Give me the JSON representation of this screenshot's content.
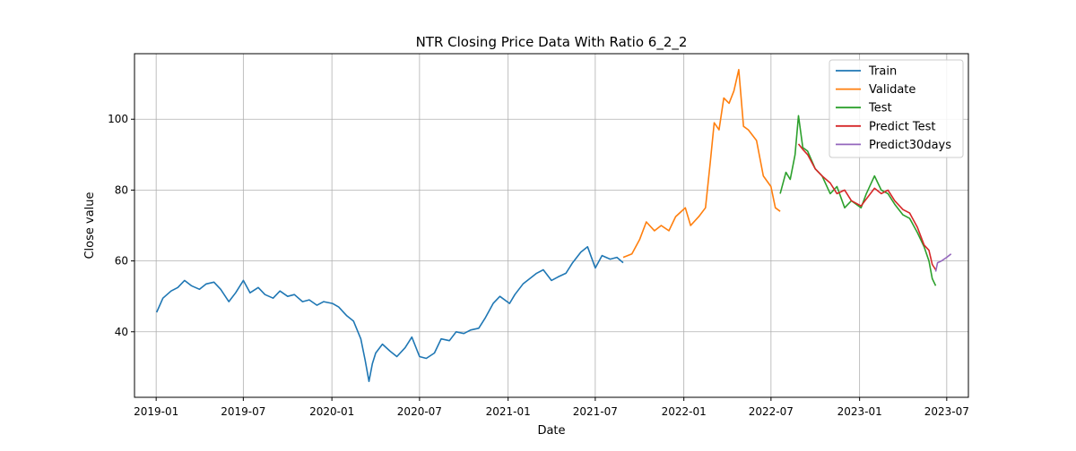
{
  "chart_data": {
    "type": "line",
    "title": "NTR Closing Price Data With Ratio 6_2_2",
    "xlabel": "Date",
    "ylabel": "Close value",
    "xlim": [
      "2018-11-17",
      "2023-08-15"
    ],
    "ylim": [
      21.5,
      118.5
    ],
    "grid": true,
    "legend_position": "top-right",
    "x_ticks": [
      "2019-01",
      "2019-07",
      "2020-01",
      "2020-07",
      "2021-01",
      "2021-07",
      "2022-01",
      "2022-07",
      "2023-01",
      "2023-07"
    ],
    "y_ticks": [
      40,
      60,
      80,
      100
    ],
    "series": [
      {
        "name": "Train",
        "color": "#1f77b4",
        "x": [
          "2019-01-02",
          "2019-01-15",
          "2019-02-01",
          "2019-02-15",
          "2019-03-01",
          "2019-03-15",
          "2019-04-01",
          "2019-04-15",
          "2019-05-01",
          "2019-05-15",
          "2019-06-01",
          "2019-06-15",
          "2019-07-01",
          "2019-07-15",
          "2019-08-01",
          "2019-08-15",
          "2019-09-01",
          "2019-09-15",
          "2019-10-01",
          "2019-10-15",
          "2019-11-01",
          "2019-11-15",
          "2019-12-01",
          "2019-12-15",
          "2020-01-02",
          "2020-01-15",
          "2020-02-01",
          "2020-02-15",
          "2020-03-01",
          "2020-03-10",
          "2020-03-18",
          "2020-03-25",
          "2020-04-01",
          "2020-04-15",
          "2020-05-01",
          "2020-05-15",
          "2020-06-01",
          "2020-06-15",
          "2020-07-01",
          "2020-07-15",
          "2020-08-01",
          "2020-08-15",
          "2020-09-01",
          "2020-09-15",
          "2020-10-01",
          "2020-10-15",
          "2020-11-01",
          "2020-11-15",
          "2020-12-01",
          "2020-12-15",
          "2021-01-04",
          "2021-01-15",
          "2021-02-01",
          "2021-02-15",
          "2021-03-01",
          "2021-03-15",
          "2021-04-01",
          "2021-04-15",
          "2021-05-01",
          "2021-05-15",
          "2021-06-01",
          "2021-06-15",
          "2021-07-01",
          "2021-07-15",
          "2021-08-01",
          "2021-08-15",
          "2021-08-28"
        ],
        "y": [
          45.5,
          49.5,
          51.5,
          52.5,
          54.5,
          53.0,
          52.0,
          53.5,
          54.0,
          52.0,
          48.5,
          51.0,
          54.5,
          51.0,
          52.5,
          50.5,
          49.5,
          51.5,
          50.0,
          50.5,
          48.5,
          49.0,
          47.5,
          48.5,
          48.0,
          47.0,
          44.5,
          43.0,
          38.0,
          32.0,
          26.0,
          31.0,
          34.0,
          36.5,
          34.5,
          33.0,
          35.5,
          38.5,
          33.0,
          32.5,
          34.0,
          38.0,
          37.5,
          40.0,
          39.5,
          40.5,
          41.0,
          44.0,
          48.0,
          50.0,
          48.0,
          50.5,
          53.5,
          55.0,
          56.5,
          57.5,
          54.5,
          55.5,
          56.5,
          59.5,
          62.5,
          64.0,
          58.0,
          61.5,
          60.5,
          61.0,
          59.5
        ]
      },
      {
        "name": "Validate",
        "color": "#ff7f0e",
        "x": [
          "2021-08-28",
          "2021-09-15",
          "2021-10-01",
          "2021-10-15",
          "2021-11-01",
          "2021-11-15",
          "2021-12-01",
          "2021-12-15",
          "2022-01-04",
          "2022-01-15",
          "2022-02-01",
          "2022-02-15",
          "2022-02-25",
          "2022-03-05",
          "2022-03-15",
          "2022-03-25",
          "2022-04-05",
          "2022-04-15",
          "2022-04-25",
          "2022-05-05",
          "2022-05-15",
          "2022-06-01",
          "2022-06-15",
          "2022-07-01",
          "2022-07-10",
          "2022-07-20"
        ],
        "y": [
          61.0,
          62.0,
          66.0,
          71.0,
          68.5,
          70.0,
          68.5,
          72.5,
          75.0,
          70.0,
          72.5,
          75.0,
          88.0,
          99.0,
          97.0,
          106.0,
          104.5,
          108.0,
          114.0,
          98.0,
          97.0,
          94.0,
          84.0,
          81.0,
          75.0,
          74.0
        ]
      },
      {
        "name": "Test",
        "color": "#2ca02c",
        "x": [
          "2022-07-20",
          "2022-08-01",
          "2022-08-10",
          "2022-08-20",
          "2022-08-27",
          "2022-09-05",
          "2022-09-15",
          "2022-10-01",
          "2022-10-15",
          "2022-11-01",
          "2022-11-15",
          "2022-12-01",
          "2022-12-15",
          "2023-01-04",
          "2023-01-15",
          "2023-02-01",
          "2023-02-15",
          "2023-03-01",
          "2023-03-15",
          "2023-04-01",
          "2023-04-15",
          "2023-05-01",
          "2023-05-15",
          "2023-05-25",
          "2023-06-01",
          "2023-06-08"
        ],
        "y": [
          79.0,
          85.0,
          83.0,
          90.0,
          101.0,
          92.0,
          91.0,
          86.0,
          84.0,
          79.0,
          81.0,
          75.0,
          77.0,
          75.0,
          79.0,
          84.0,
          80.0,
          79.0,
          76.0,
          73.0,
          72.0,
          68.0,
          64.0,
          60.0,
          55.0,
          53.0
        ]
      },
      {
        "name": "Predict Test",
        "color": "#d62728",
        "x": [
          "2022-08-27",
          "2022-09-05",
          "2022-09-15",
          "2022-10-01",
          "2022-10-15",
          "2022-11-01",
          "2022-11-15",
          "2022-12-01",
          "2022-12-15",
          "2023-01-04",
          "2023-01-15",
          "2023-02-01",
          "2023-02-15",
          "2023-03-01",
          "2023-03-15",
          "2023-04-01",
          "2023-04-15",
          "2023-05-01",
          "2023-05-15",
          "2023-05-25",
          "2023-06-01",
          "2023-06-08"
        ],
        "y": [
          93.0,
          91.5,
          90.0,
          86.0,
          84.0,
          82.0,
          79.0,
          80.0,
          77.0,
          75.5,
          77.5,
          80.5,
          79.0,
          80.0,
          77.0,
          74.5,
          73.5,
          69.5,
          64.5,
          63.0,
          59.0,
          57.5
        ]
      },
      {
        "name": "Predict30days",
        "color": "#9467bd",
        "x": [
          "2023-06-08",
          "2023-06-12",
          "2023-06-20",
          "2023-07-01",
          "2023-07-10"
        ],
        "y": [
          57.0,
          59.5,
          60.0,
          61.0,
          62.0
        ]
      }
    ]
  }
}
